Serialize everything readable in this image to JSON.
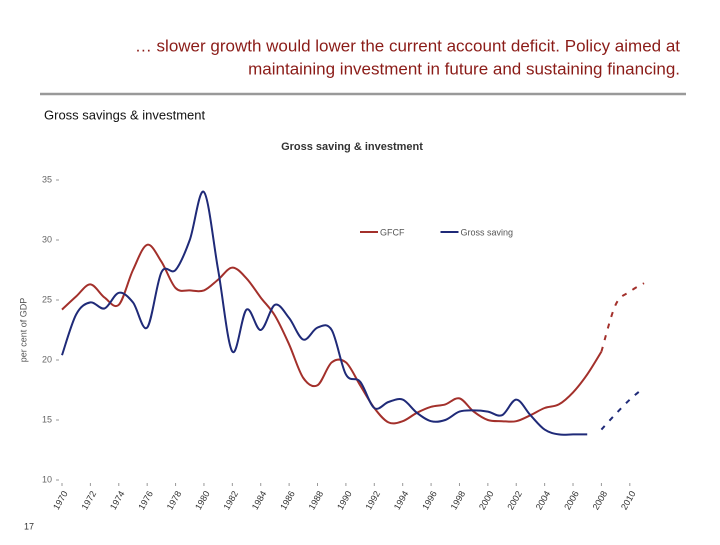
{
  "header": {
    "lines": [
      "… slower growth would lower the current account deficit.  Policy aimed at",
      "maintaining investment in future and sustaining financing."
    ]
  },
  "subtitle": "Gross savings & investment",
  "page_number": "17",
  "chart_data": {
    "type": "line",
    "title": "Gross saving & investment",
    "y_label": "per cent of GDP",
    "x": [
      1970,
      1971,
      1972,
      1973,
      1974,
      1975,
      1976,
      1977,
      1978,
      1979,
      1980,
      1981,
      1982,
      1983,
      1984,
      1985,
      1986,
      1987,
      1988,
      1989,
      1990,
      1991,
      1992,
      1993,
      1994,
      1995,
      1996,
      1997,
      1998,
      1999,
      2000,
      2001,
      2002,
      2003,
      2004,
      2005,
      2006,
      2007,
      2008,
      2009,
      2010,
      2011
    ],
    "xlim": [
      1970,
      2011
    ],
    "xticks": [
      1970,
      1972,
      1974,
      1976,
      1978,
      1980,
      1982,
      1984,
      1986,
      1988,
      1990,
      1992,
      1994,
      1996,
      1998,
      2000,
      2002,
      2004,
      2006,
      2008,
      2010
    ],
    "ylim": [
      10,
      35
    ],
    "yticks": [
      10,
      15,
      20,
      25,
      30,
      35
    ],
    "series": [
      {
        "name": "GFCF",
        "color": "#a3302b",
        "values": [
          24.2,
          25.3,
          26.3,
          25.2,
          24.6,
          27.5,
          29.6,
          28.2,
          26,
          25.8,
          25.8,
          26.7,
          27.7,
          26.8,
          25.2,
          23.7,
          21.3,
          18.5,
          17.9,
          19.8,
          19.8,
          17.9,
          16,
          14.8,
          14.9,
          15.6,
          16.1,
          16.3,
          16.8,
          15.7,
          15,
          14.9,
          14.9,
          15.4,
          16,
          16.3,
          17.3,
          18.8,
          20.7,
          null,
          null,
          null
        ],
        "projection": [
          null,
          null,
          null,
          null,
          null,
          null,
          null,
          null,
          null,
          null,
          null,
          null,
          null,
          null,
          null,
          null,
          null,
          null,
          null,
          null,
          null,
          null,
          null,
          null,
          null,
          null,
          null,
          null,
          null,
          null,
          null,
          null,
          null,
          null,
          null,
          null,
          null,
          null,
          20.7,
          24.6,
          25.7,
          26.4
        ]
      },
      {
        "name": "Gross saving",
        "color": "#1f2a78",
        "values": [
          20.4,
          23.8,
          24.8,
          24.3,
          25.6,
          24.8,
          22.7,
          27.3,
          27.5,
          30,
          34,
          27.5,
          20.7,
          24.2,
          22.5,
          24.6,
          23.5,
          21.7,
          22.7,
          22.5,
          18.8,
          18.2,
          16,
          16.5,
          16.7,
          15.6,
          14.9,
          15,
          15.7,
          15.8,
          15.7,
          15.4,
          16.7,
          15.4,
          14.2,
          13.8,
          13.8,
          13.8,
          null,
          null,
          null,
          null
        ],
        "projection": [
          null,
          null,
          null,
          null,
          null,
          null,
          null,
          null,
          null,
          null,
          null,
          null,
          null,
          null,
          null,
          null,
          null,
          null,
          null,
          null,
          null,
          null,
          null,
          null,
          null,
          null,
          null,
          null,
          null,
          null,
          null,
          null,
          null,
          null,
          null,
          null,
          null,
          null,
          14.2,
          15.5,
          16.7,
          17.7
        ]
      }
    ]
  }
}
